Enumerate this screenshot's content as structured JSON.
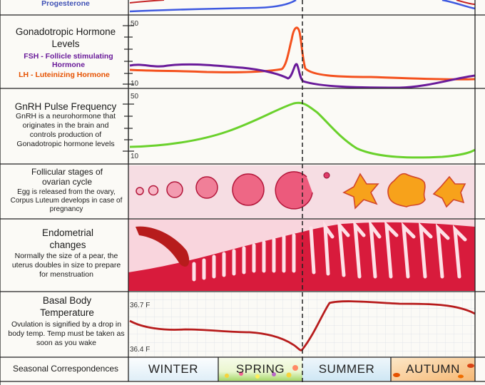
{
  "rows": {
    "progesterone": {
      "legend": "Progesterone"
    },
    "gonadotropic": {
      "title": "Gonadotropic Hormone Levels",
      "legend_fsh": "FSH - Follicle stimulating Hormone",
      "legend_lh": "LH - Luteinizing Hormone",
      "y_max": "50",
      "y_min": "10"
    },
    "gnrh": {
      "title": "GnRH Pulse Frequency",
      "description": "GnRH is a neurohormone that originates in the brain and controls production of Gonadotropic hormone levels",
      "y_max": "50",
      "y_min": "10"
    },
    "follicular": {
      "title": "Follicular stages of ovarian cycle",
      "description": "Egg is released from the ovary, Corpus Luteum develops in case of pregnancy"
    },
    "endometrial": {
      "title": "Endometrial changes",
      "description": "Normally the size of a pear, the uterus doubles in size to prepare for menstruation"
    },
    "basal": {
      "title": "Basal Body Temperature",
      "description": "Ovulation is signified by a drop in body temp. Temp must be taken as soon as you wake",
      "y_max": "36.7 F",
      "y_min": "36.4 F"
    },
    "seasonal": {
      "title": "Seasonal Correspondences",
      "seasons": [
        "WINTER",
        "SPRING",
        "SUMMER",
        "AUTUMN"
      ]
    }
  },
  "colors": {
    "fsh": "#6a1b9a",
    "lh": "#f4511e",
    "gnrh": "#6ad12c",
    "progesterone": "#3f5ae0",
    "temperature": "#b71c1c",
    "endometrium": "#d81b3c",
    "follicle": "#e8466a",
    "corpus_luteum": "#f7a21b"
  }
}
